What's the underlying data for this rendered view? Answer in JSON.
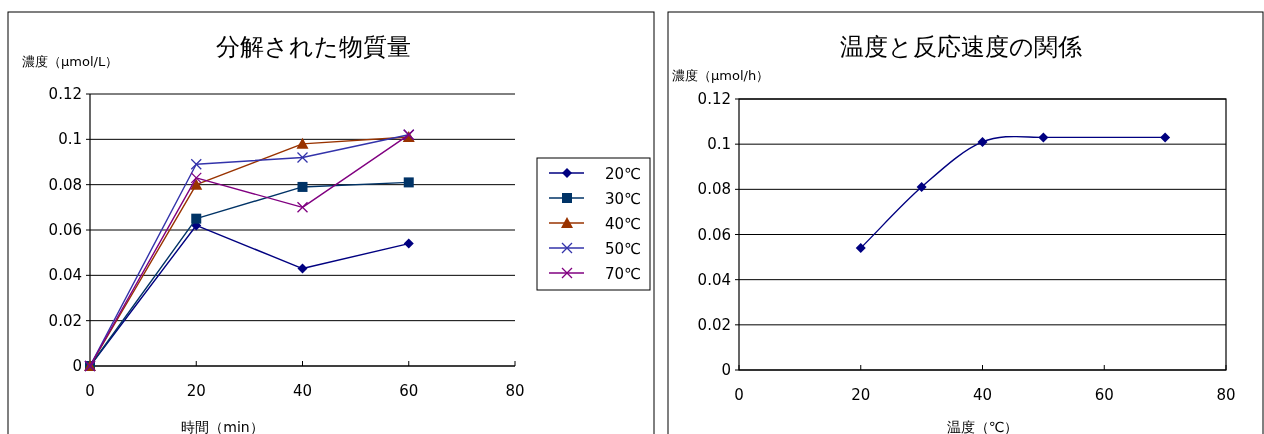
{
  "chart_data": [
    {
      "type": "line",
      "title": "分解された物質量",
      "xlabel": "時間（min）",
      "ylabel": "濃度（μmol/L）",
      "x": [
        0,
        20,
        40,
        60
      ],
      "xlim": [
        0,
        80
      ],
      "xticks": [
        0,
        20,
        40,
        60,
        80
      ],
      "ylim": [
        0,
        0.12
      ],
      "yticks": [
        0,
        0.02,
        0.04,
        0.06,
        0.08,
        0.1,
        0.12
      ],
      "grid": "y",
      "legend": "right",
      "series": [
        {
          "name": "20℃",
          "color": "#000080",
          "marker": "diamond",
          "values": [
            0,
            0.062,
            0.043,
            0.054
          ]
        },
        {
          "name": "30℃",
          "color": "#003366",
          "marker": "square",
          "values": [
            0,
            0.065,
            0.079,
            0.081
          ]
        },
        {
          "name": "40℃",
          "color": "#993300",
          "marker": "triangle",
          "values": [
            0,
            0.08,
            0.098,
            0.101
          ]
        },
        {
          "name": "50℃",
          "color": "#3333aa",
          "marker": "cross",
          "values": [
            0,
            0.089,
            0.092,
            0.102
          ]
        },
        {
          "name": "70℃",
          "color": "#800080",
          "marker": "cross",
          "values": [
            0,
            0.083,
            0.07,
            0.102
          ]
        }
      ]
    },
    {
      "type": "line",
      "title": "温度と反応速度の関係",
      "xlabel": "温度（℃）",
      "ylabel": "濃度（μmol/h）",
      "x": [
        20,
        30,
        40,
        50,
        70
      ],
      "xlim": [
        0,
        80
      ],
      "xticks": [
        0,
        20,
        40,
        60,
        80
      ],
      "ylim": [
        0,
        0.12
      ],
      "yticks": [
        0,
        0.02,
        0.04,
        0.06,
        0.08,
        0.1,
        0.12
      ],
      "grid": "y",
      "series": [
        {
          "color": "#000080",
          "marker": "diamond",
          "values": [
            0.054,
            0.081,
            0.101,
            0.103,
            0.103
          ]
        }
      ]
    }
  ]
}
